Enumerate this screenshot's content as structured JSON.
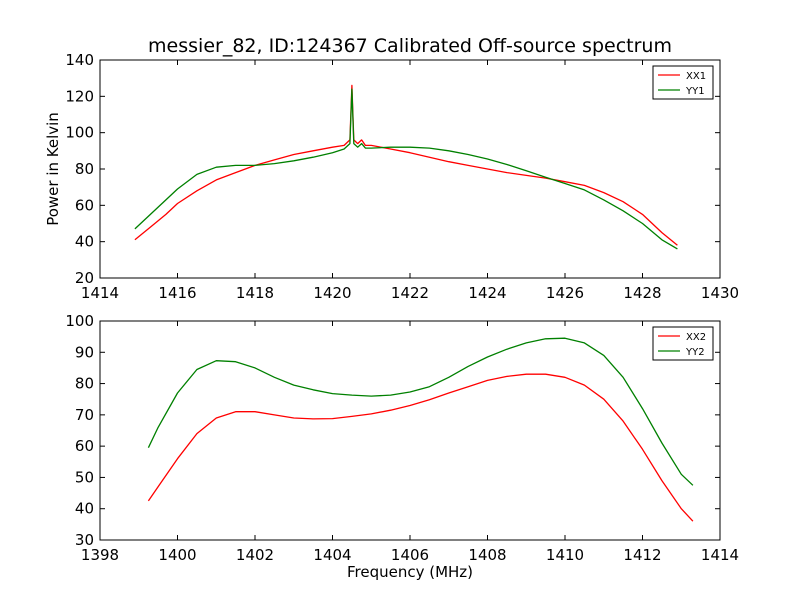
{
  "figure": {
    "title": "messier_82, ID:124367 Calibrated Off-source spectrum"
  },
  "chart_data": [
    {
      "type": "line",
      "title": "messier_82, ID:124367 Calibrated Off-source spectrum",
      "xlabel": "",
      "ylabel": "Power in Kelvin",
      "xlim": [
        1414,
        1430
      ],
      "ylim": [
        20,
        140
      ],
      "xticks": [
        1414,
        1416,
        1418,
        1420,
        1422,
        1424,
        1426,
        1428,
        1430
      ],
      "yticks": [
        20,
        40,
        60,
        80,
        100,
        120,
        140
      ],
      "grid": false,
      "legend": "top-right",
      "series": [
        {
          "name": "XX1",
          "color": "#ff0000",
          "x": [
            1414.9,
            1415.3,
            1415.7,
            1416.0,
            1416.5,
            1417.0,
            1417.5,
            1418.0,
            1418.5,
            1419.0,
            1419.5,
            1420.0,
            1420.3,
            1420.45,
            1420.5,
            1420.55,
            1420.65,
            1420.75,
            1420.85,
            1421.0,
            1421.5,
            1422.0,
            1422.5,
            1423.0,
            1423.5,
            1424.0,
            1424.5,
            1425.0,
            1425.5,
            1426.0,
            1426.5,
            1427.0,
            1427.5,
            1428.0,
            1428.5,
            1428.9
          ],
          "y": [
            41,
            48,
            55,
            61,
            68,
            74,
            78,
            82,
            85,
            88,
            90,
            92,
            93,
            96,
            126,
            96,
            94,
            96,
            93,
            93,
            91,
            89,
            86.5,
            84,
            82,
            80,
            78,
            76.5,
            75,
            73,
            71,
            67,
            62,
            55,
            45,
            38
          ]
        },
        {
          "name": "YY1",
          "color": "#008000",
          "x": [
            1414.9,
            1415.3,
            1415.7,
            1416.0,
            1416.5,
            1417.0,
            1417.5,
            1418.0,
            1418.5,
            1419.0,
            1419.5,
            1420.0,
            1420.3,
            1420.45,
            1420.5,
            1420.55,
            1420.65,
            1420.75,
            1420.85,
            1421.0,
            1421.5,
            1422.0,
            1422.5,
            1423.0,
            1423.5,
            1424.0,
            1424.5,
            1425.0,
            1425.5,
            1426.0,
            1426.5,
            1427.0,
            1427.5,
            1428.0,
            1428.5,
            1428.9
          ],
          "y": [
            47,
            55,
            63,
            69,
            77,
            81,
            82,
            82,
            83,
            84.5,
            86.5,
            89,
            91,
            94,
            124,
            94,
            92,
            94,
            91.5,
            91.5,
            92,
            92,
            91.5,
            90,
            88,
            85.5,
            82.5,
            79,
            75.5,
            72,
            68.5,
            63,
            57,
            50,
            41,
            36
          ]
        }
      ]
    },
    {
      "type": "line",
      "title": "",
      "xlabel": "Frequency (MHz)",
      "ylabel": "",
      "xlim": [
        1398,
        1414
      ],
      "ylim": [
        30,
        100
      ],
      "xticks": [
        1398,
        1400,
        1402,
        1404,
        1406,
        1408,
        1410,
        1412,
        1414
      ],
      "yticks": [
        30,
        40,
        50,
        60,
        70,
        80,
        90,
        100
      ],
      "grid": false,
      "legend": "top-right",
      "series": [
        {
          "name": "XX2",
          "color": "#ff0000",
          "x": [
            1399.25,
            1399.5,
            1400.0,
            1400.5,
            1401.0,
            1401.5,
            1402.0,
            1402.5,
            1403.0,
            1403.5,
            1404.0,
            1404.5,
            1405.0,
            1405.5,
            1406.0,
            1406.5,
            1407.0,
            1407.5,
            1408.0,
            1408.5,
            1409.0,
            1409.5,
            1410.0,
            1410.5,
            1411.0,
            1411.5,
            1412.0,
            1412.5,
            1413.0,
            1413.3
          ],
          "y": [
            42.5,
            47,
            56,
            64,
            69,
            71,
            71,
            70,
            69,
            68.7,
            68.8,
            69.5,
            70.3,
            71.5,
            73,
            74.8,
            77,
            79,
            81,
            82.3,
            83,
            83,
            82,
            79.5,
            75,
            68,
            59,
            49,
            40,
            36
          ]
        },
        {
          "name": "YY2",
          "color": "#008000",
          "x": [
            1399.25,
            1399.5,
            1400.0,
            1400.5,
            1401.0,
            1401.5,
            1402.0,
            1402.5,
            1403.0,
            1403.5,
            1404.0,
            1404.5,
            1405.0,
            1405.5,
            1406.0,
            1406.5,
            1407.0,
            1407.5,
            1408.0,
            1408.5,
            1409.0,
            1409.5,
            1410.0,
            1410.5,
            1411.0,
            1411.5,
            1412.0,
            1412.5,
            1413.0,
            1413.3
          ],
          "y": [
            59.5,
            66,
            77,
            84.5,
            87.3,
            87,
            85,
            82,
            79.5,
            78,
            76.8,
            76.3,
            76,
            76.3,
            77.3,
            79,
            82,
            85.5,
            88.5,
            91,
            93,
            94.3,
            94.5,
            93,
            89,
            82,
            72,
            61,
            51,
            47.5
          ]
        }
      ]
    }
  ]
}
